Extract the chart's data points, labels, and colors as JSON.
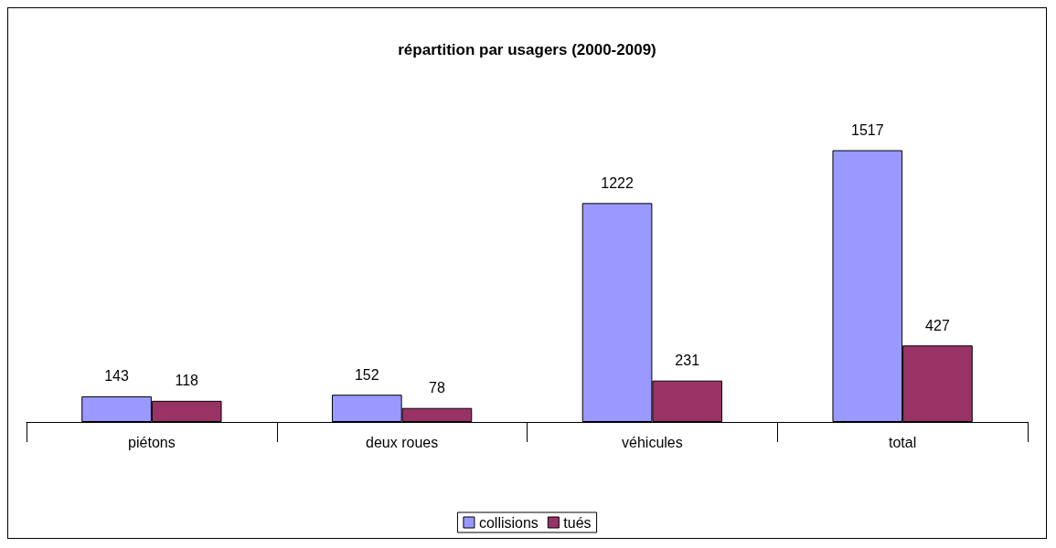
{
  "chart_data": {
    "type": "bar",
    "title": "répartition par usagers (2000-2009)",
    "categories": [
      "piétons",
      "deux roues",
      "véhicules",
      "total"
    ],
    "series": [
      {
        "name": "collisions",
        "color": "#9999ff",
        "values": [
          143,
          152,
          1222,
          1517
        ]
      },
      {
        "name": "tués",
        "color": "#993366",
        "values": [
          118,
          78,
          231,
          427
        ]
      }
    ],
    "data_labels": true,
    "grid": false,
    "legend": "bottom"
  }
}
